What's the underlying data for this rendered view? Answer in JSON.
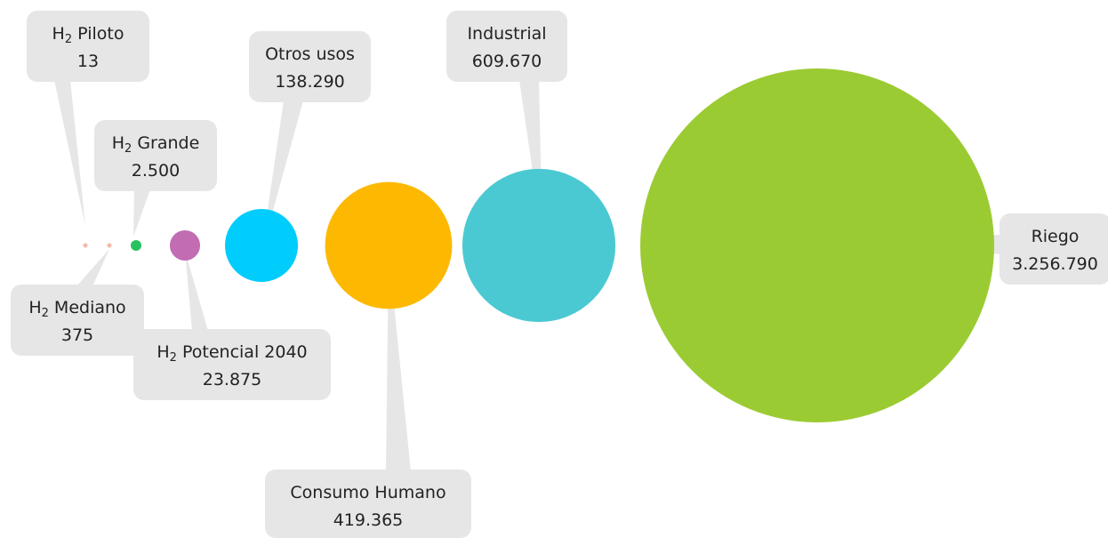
{
  "chart_data": {
    "type": "bubble",
    "grid": false,
    "legend": "none",
    "items": [
      {
        "label_main": "H",
        "label_sub": "2",
        "label_rest": " Piloto",
        "value": 13,
        "value_label": "13",
        "color": "#f4b8a4"
      },
      {
        "label_main": "H",
        "label_sub": "2",
        "label_rest": " Mediano",
        "value": 375,
        "value_label": "375",
        "color": "#f4b8a4"
      },
      {
        "label_main": "H",
        "label_sub": "2",
        "label_rest": " Grande",
        "value": 2500,
        "value_label": "2.500",
        "color": "#28c15f"
      },
      {
        "label_main": "H",
        "label_sub": "2",
        "label_rest": " Potencial 2040",
        "value": 23875,
        "value_label": "23.875",
        "color": "#c26cb3"
      },
      {
        "label_main": "Otros usos",
        "label_sub": "",
        "label_rest": "",
        "value": 138290,
        "value_label": "138.290",
        "color": "#00cdfb"
      },
      {
        "label_main": "Consumo Humano",
        "label_sub": "",
        "label_rest": "",
        "value": 419365,
        "value_label": "419.365",
        "color": "#fdb902"
      },
      {
        "label_main": "Industrial",
        "label_sub": "",
        "label_rest": "",
        "value": 609670,
        "value_label": "609.670",
        "color": "#4ac9d2"
      },
      {
        "label_main": "Riego",
        "label_sub": "",
        "label_rest": "",
        "value": 3256790,
        "value_label": "3.256.790",
        "color": "#9bcb33"
      }
    ]
  }
}
